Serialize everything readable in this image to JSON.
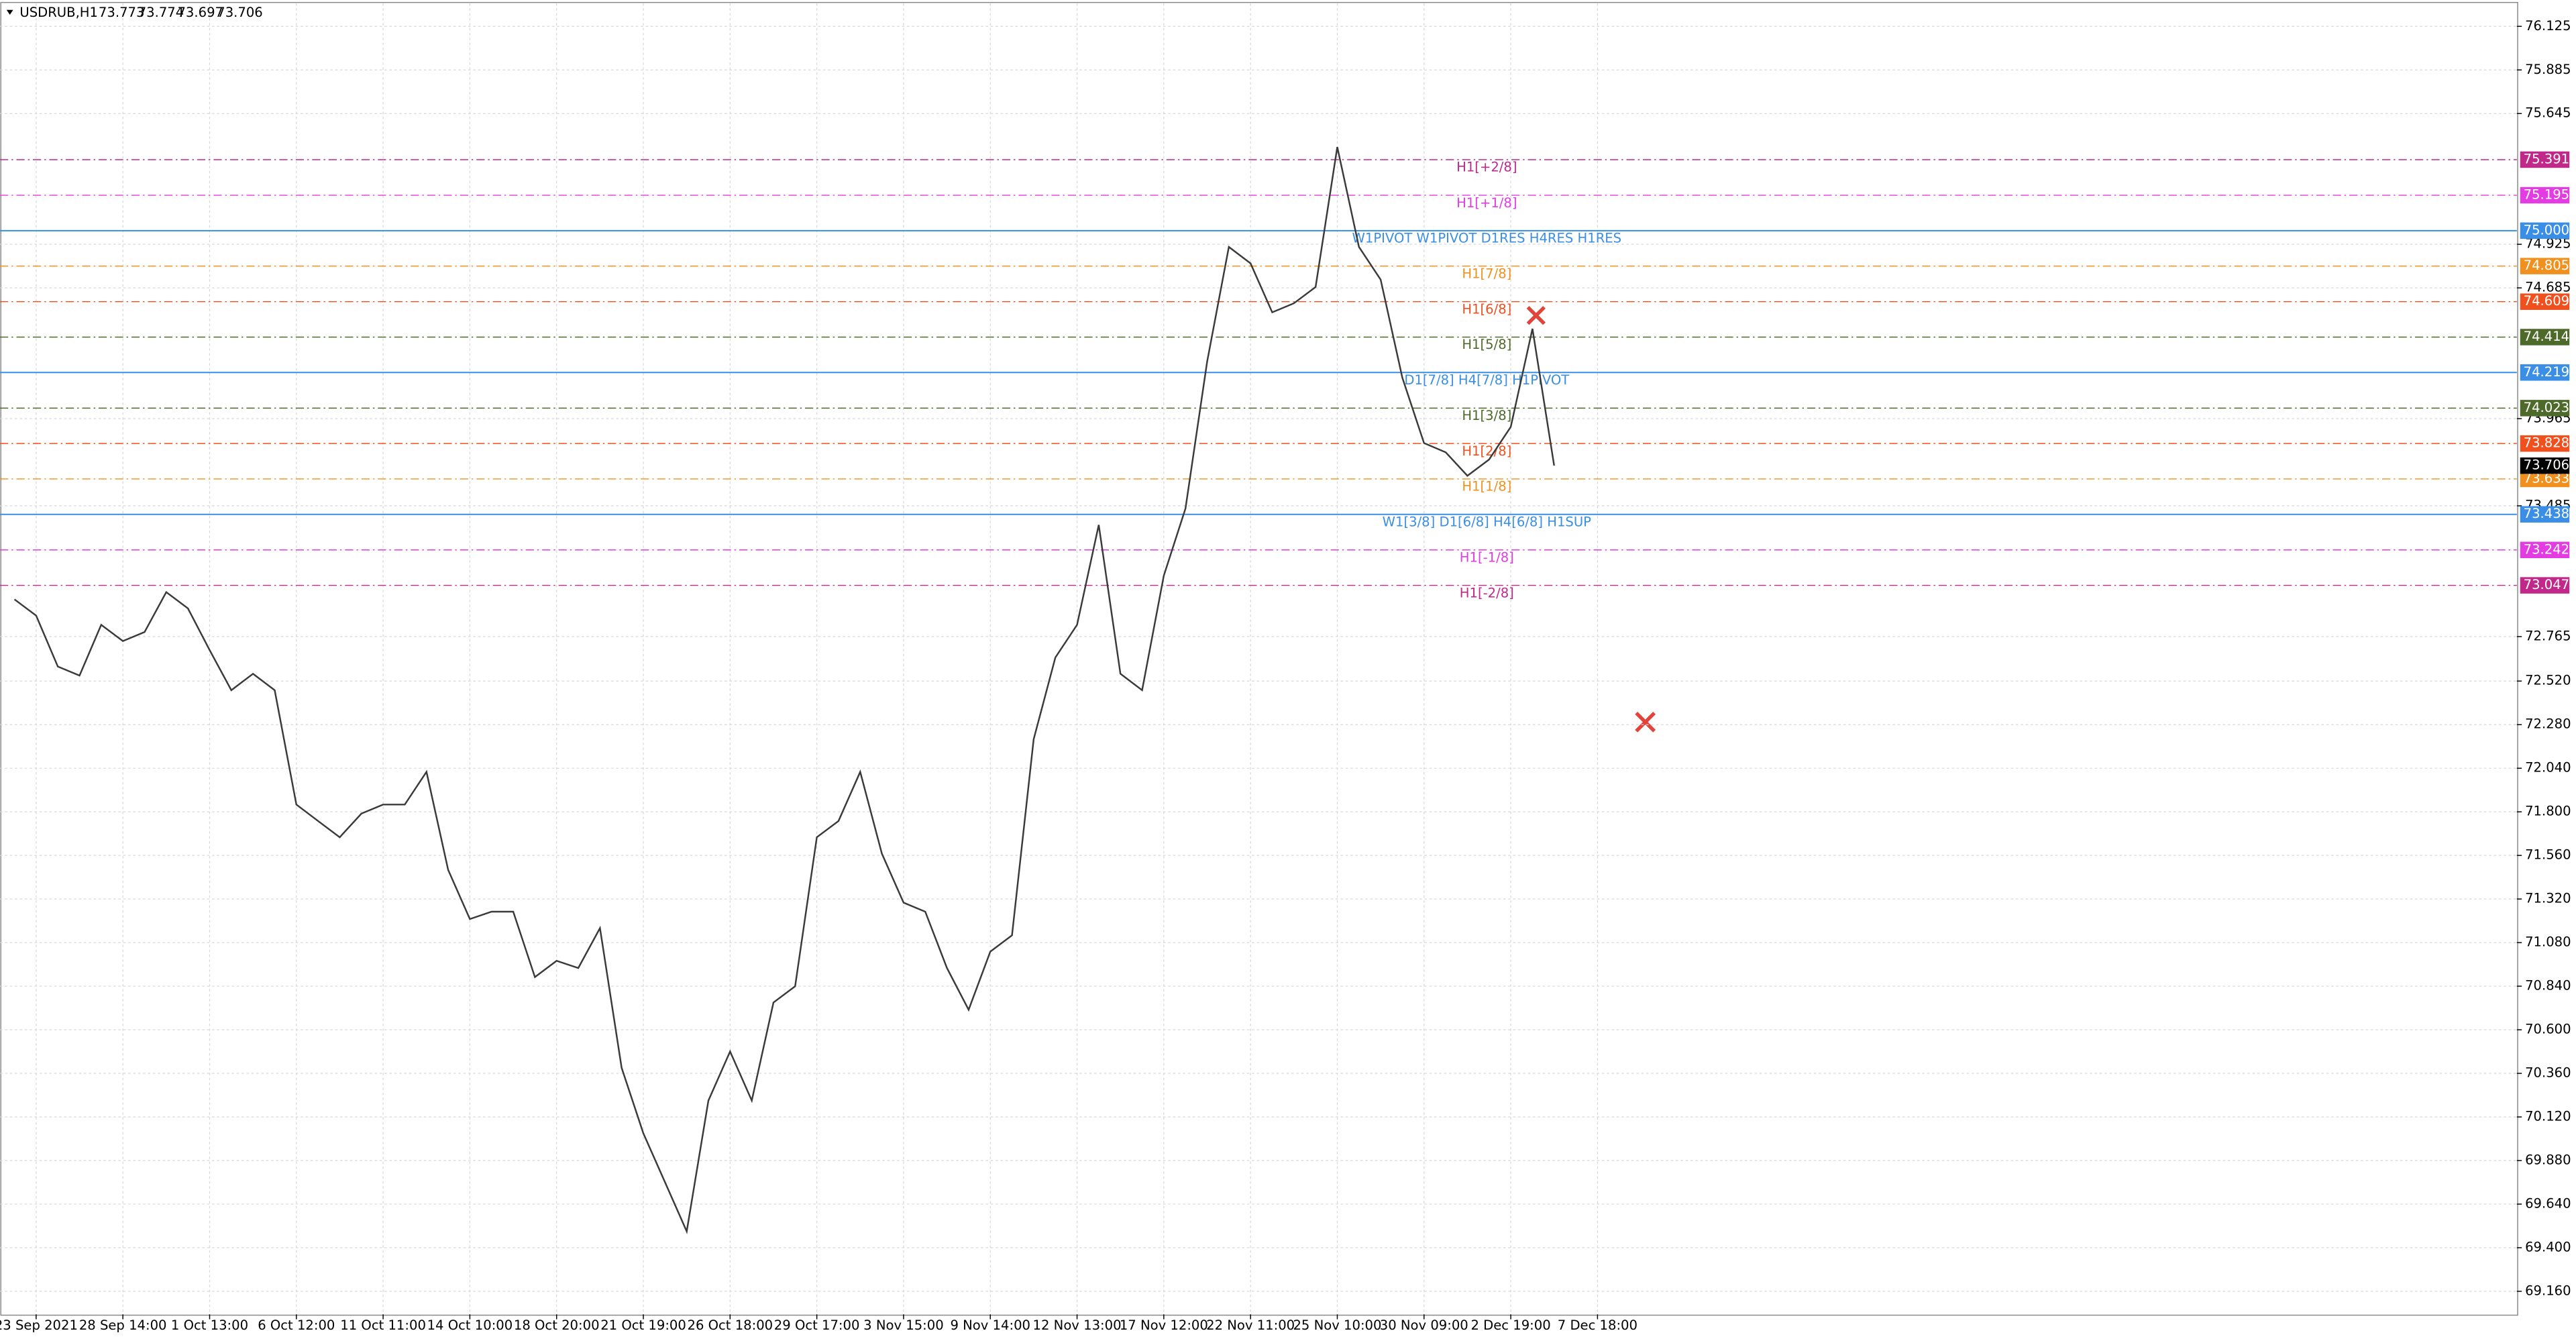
{
  "chart_data": {
    "type": "line",
    "symbol": "USDRUB,H1",
    "ohlc": [
      73.773,
      73.774,
      73.697,
      73.706
    ],
    "categories": [
      null,
      "23 Sep 2021",
      null,
      null,
      null,
      "28 Sep 14:00",
      null,
      null,
      null,
      "1 Oct 13:00",
      null,
      null,
      null,
      "6 Oct 12:00",
      null,
      null,
      null,
      "11 Oct 11:00",
      null,
      null,
      null,
      "14 Oct 10:00",
      null,
      null,
      null,
      "18 Oct 20:00",
      null,
      null,
      null,
      "21 Oct 19:00",
      null,
      null,
      null,
      "26 Oct 18:00",
      null,
      null,
      null,
      "29 Oct 17:00",
      null,
      null,
      null,
      "3 Nov 15:00",
      null,
      null,
      null,
      "9 Nov 14:00",
      null,
      null,
      null,
      "12 Nov 13:00",
      null,
      null,
      null,
      "17 Nov 12:00",
      null,
      null,
      null,
      "22 Nov 11:00",
      null,
      null,
      null,
      "25 Nov 10:00",
      null,
      null,
      null,
      "30 Nov 09:00",
      null,
      null,
      null,
      "2 Dec 19:00",
      null,
      null,
      null,
      "7 Dec 18:00"
    ],
    "series": [
      {
        "color": "#3a3a3a",
        "values": [
          72.97,
          72.88,
          72.6,
          72.55,
          72.83,
          72.74,
          72.79,
          73.01,
          72.92,
          72.69,
          72.47,
          72.56,
          72.47,
          71.84,
          71.75,
          71.66,
          71.79,
          71.84,
          71.84,
          72.02,
          71.48,
          71.21,
          71.25,
          71.25,
          70.89,
          70.98,
          70.94,
          71.16,
          70.39,
          70.03,
          69.76,
          69.49,
          70.21,
          70.48,
          70.21,
          70.75,
          70.84,
          71.66,
          71.75,
          72.02,
          71.57,
          71.3,
          71.25,
          70.94,
          70.71,
          71.03,
          71.12,
          72.2,
          72.65,
          72.83,
          73.38,
          72.56,
          72.47,
          73.1,
          73.47,
          74.28,
          74.91,
          74.82,
          74.55,
          74.6,
          74.69,
          75.46,
          74.91,
          74.73,
          74.19,
          73.83,
          73.78,
          73.65,
          73.74,
          73.92,
          74.46,
          73.706,
          null,
          null
        ]
      }
    ],
    "ylim": [
      69.033,
      76.252
    ],
    "yticks": [
      76.125,
      75.885,
      75.645,
      74.925,
      74.685,
      73.965,
      73.485,
      72.765,
      {
        "value": 72.52,
        "label": "72.520"
      },
      {
        "value": 72.28,
        "label": "72.280"
      },
      {
        "value": 72.04,
        "label": "72.040"
      },
      {
        "value": 71.8,
        "label": "71.800"
      },
      {
        "value": 71.56,
        "label": "71.560"
      },
      {
        "value": 71.32,
        "label": "71.320"
      },
      {
        "value": 71.08,
        "label": "71.080"
      },
      {
        "value": 70.84,
        "label": "70.840"
      },
      {
        "value": 70.6,
        "label": "70.600"
      },
      {
        "value": 70.36,
        "label": "70.360"
      },
      {
        "value": 70.12,
        "label": "70.120"
      },
      {
        "value": 69.88,
        "label": "69.880"
      },
      {
        "value": 69.64,
        "label": "69.640"
      },
      {
        "value": 69.4,
        "label": "69.400"
      },
      {
        "value": 69.16,
        "label": "69.160"
      }
    ],
    "grid": true,
    "levels": [
      {
        "label": "H1[+2/8]",
        "value": 75.391,
        "color": "#c0288a",
        "style": "dashdot"
      },
      {
        "label": "H1[+1/8]",
        "value": 75.195,
        "color": "#e23ce2",
        "style": "dashdot"
      },
      {
        "label": "W1PIVOT W1PIVOT D1RES H4RES H1RES",
        "value": 75,
        "value_label": "75.000",
        "color": "#3a8ee6",
        "style": "solid"
      },
      {
        "label": "H1[7/8]",
        "value": 74.805,
        "color": "#f0901e",
        "style": "dashdot"
      },
      {
        "label": "H1[6/8]",
        "value": 74.609,
        "color": "#f0501e",
        "style": "dashdot"
      },
      {
        "label": "H1[5/8]",
        "value": 74.414,
        "color": "#4e6a2a",
        "style": "dashdot"
      },
      {
        "label": "D1[7/8] H4[7/8] H1PIVOT",
        "value": 74.219,
        "color": "#3a8ee6",
        "style": "solid"
      },
      {
        "label": "H1[3/8]",
        "value": 74.023,
        "color": "#4e6a2a",
        "style": "dashdot"
      },
      {
        "label": "H1[2/8]",
        "value": 73.828,
        "color": "#f0501e",
        "style": "dashdot"
      },
      {
        "label": "H1[1/8]",
        "value": 73.633,
        "color": "#f0901e",
        "style": "dashdot"
      },
      {
        "label": "W1[3/8] D1[6/8] H4[6/8] H1SUP",
        "value": 73.438,
        "color": "#3a8ee6",
        "style": "solid"
      },
      {
        "label": "H1[-1/8]",
        "value": 73.242,
        "color": "#e23ce2",
        "style": "dashdot"
      },
      {
        "label": "H1[-2/8]",
        "value": 73.047,
        "color": "#c0288a",
        "style": "dashdot"
      }
    ]
  }
}
